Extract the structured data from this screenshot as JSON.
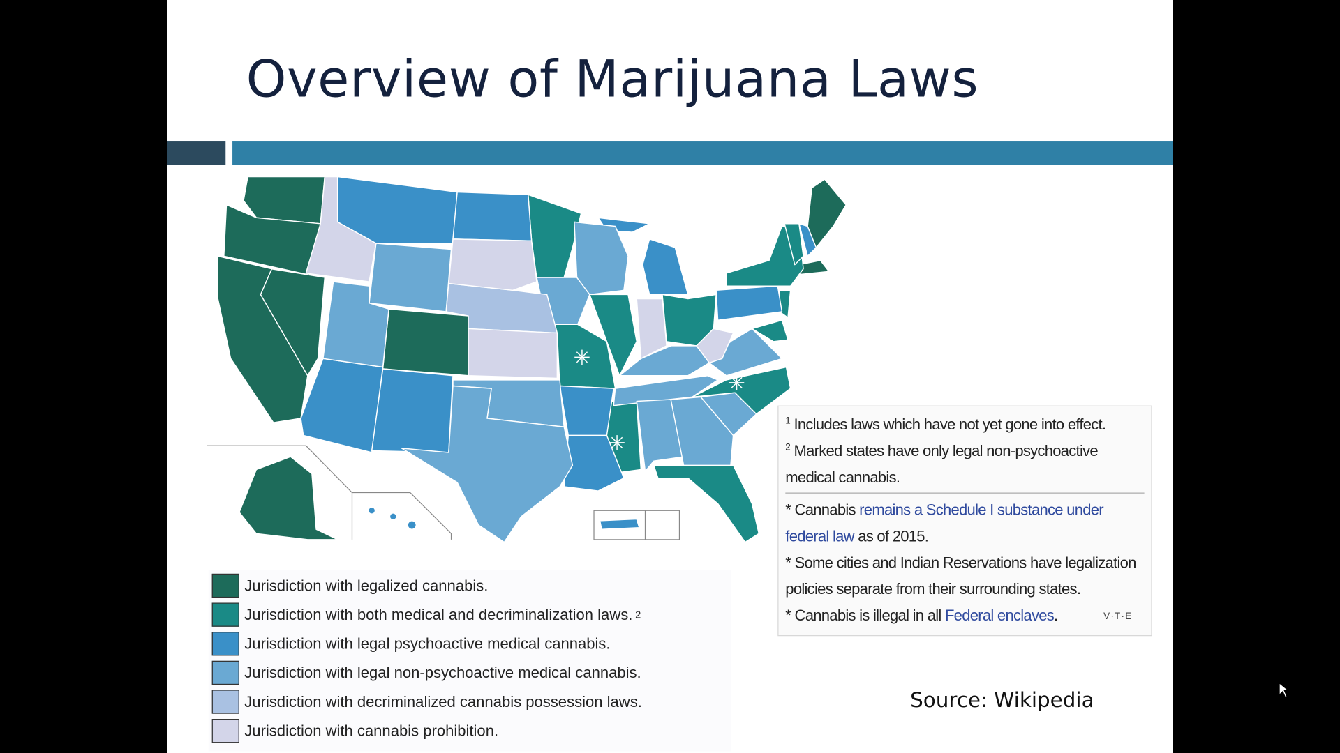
{
  "slide": {
    "title": "Overview of Marijuana Laws",
    "legend": [
      {
        "label": "Jurisdiction with legalized cannabis.",
        "color": "#1d6b5a"
      },
      {
        "label": "Jurisdiction with both medical and decriminalization laws.",
        "superscript": "2",
        "color": "#1a8a86"
      },
      {
        "label": "Jurisdiction with legal psychoactive medical cannabis.",
        "color": "#3a90c8"
      },
      {
        "label": "Jurisdiction with legal non-psychoactive medical cannabis.",
        "color": "#6aa9d3"
      },
      {
        "label": "Jurisdiction with decriminalized cannabis possession laws.",
        "color": "#a9c1e2"
      },
      {
        "label": "Jurisdiction with cannabis prohibition.",
        "color": "#d3d5e9"
      }
    ],
    "notes": {
      "footnotes": [
        {
          "marker": "1",
          "text": "Includes laws which have not yet gone into effect."
        },
        {
          "marker": "2",
          "text": "Marked states have only legal non-psychoactive medical cannabis."
        }
      ],
      "bullets": [
        [
          {
            "text": "* Cannabis "
          },
          {
            "text": "remains a Schedule I substance under federal law",
            "link": true
          },
          {
            "text": " as of 2015."
          }
        ],
        [
          {
            "text": "* Some cities and Indian Reservations have legalization policies separate from their surrounding states."
          }
        ],
        [
          {
            "text": "* Cannabis is illegal in all "
          },
          {
            "text": "Federal enclaves",
            "link": true
          },
          {
            "text": "."
          }
        ]
      ],
      "vte": "V·T·E"
    },
    "source": "Source: Wikipedia"
  }
}
